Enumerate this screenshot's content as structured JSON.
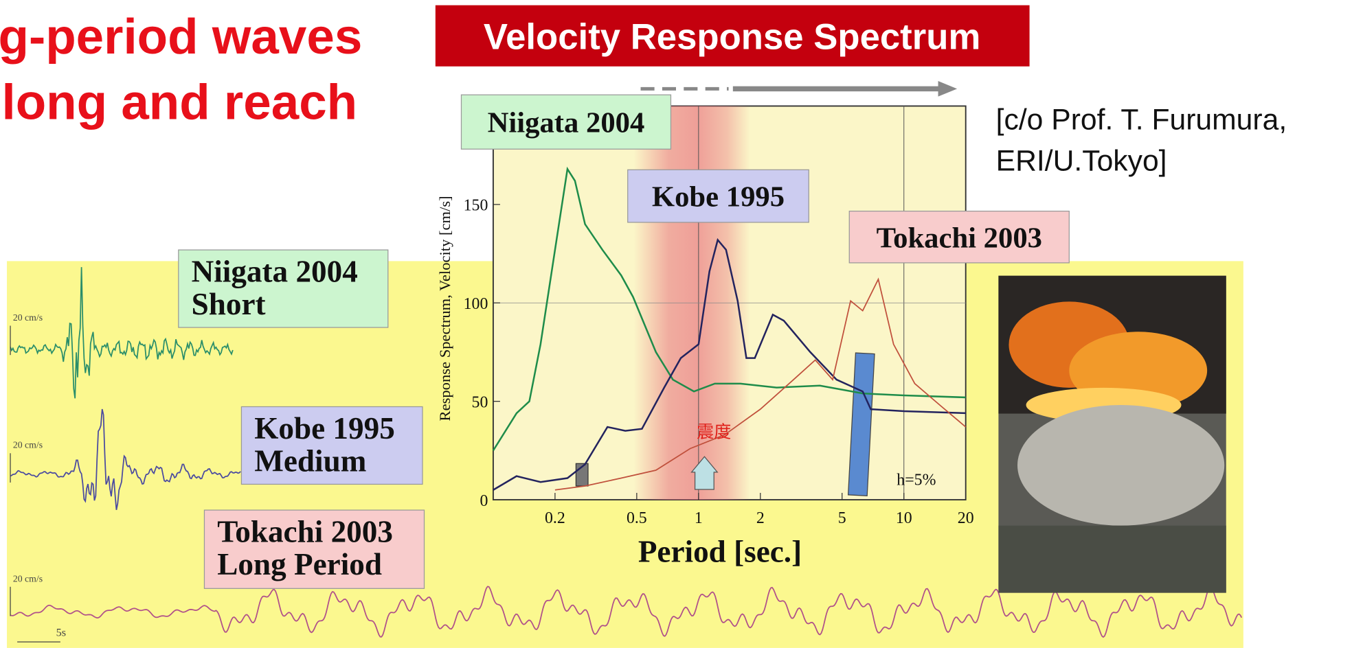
{
  "slide": {
    "heading_lines": [
      "g-period waves",
      "long and reach"
    ],
    "banner": "Velocity Response Spectrum",
    "credit_lines": [
      "[c/o Prof. T. Furumura,",
      "ERI/U.Tokyo]"
    ],
    "seismograms": [
      {
        "label_lines": [
          "Niigata 2004",
          "Short"
        ],
        "scale": "20 cm/s"
      },
      {
        "label_lines": [
          "Kobe 1995",
          "Medium"
        ],
        "scale": "20 cm/s"
      },
      {
        "label_lines": [
          "Tokachi 2003",
          "Long Period"
        ],
        "scale": "20 cm/s"
      }
    ],
    "time_scale": "5s"
  },
  "chart_data": {
    "type": "line",
    "x_label": "Period [sec.]",
    "y_label": "Response Spectrum, Velocity [cm/s]",
    "annotations": [
      "h=5%",
      "震度"
    ],
    "xlog": true,
    "xlim": [
      0.1,
      20
    ],
    "xticks": [
      0.2,
      0.5,
      1,
      2,
      5,
      10,
      20
    ],
    "ylim": [
      0,
      200
    ],
    "yticks": [
      0,
      50,
      100,
      150
    ],
    "xgrid": [
      1,
      10
    ],
    "ygrid": [
      100
    ],
    "series": [
      {
        "name": "Niigata 2004",
        "color": "#1e8c4a",
        "x": [
          0.1,
          0.13,
          0.15,
          0.17,
          0.2,
          0.23,
          0.25,
          0.28,
          0.34,
          0.42,
          0.48,
          0.62,
          0.75,
          0.95,
          1.2,
          1.6,
          2.4,
          3.9,
          6.3,
          10,
          20
        ],
        "values": [
          25,
          44,
          50,
          79,
          127,
          168,
          162,
          140,
          127,
          114,
          103,
          75,
          61,
          55,
          59,
          59,
          57,
          58,
          54,
          53,
          52
        ]
      },
      {
        "name": "Kobe 1995",
        "color": "#23235e",
        "x": [
          0.1,
          0.13,
          0.17,
          0.23,
          0.28,
          0.36,
          0.44,
          0.53,
          0.68,
          0.82,
          1.0,
          1.13,
          1.24,
          1.36,
          1.55,
          1.71,
          1.88,
          2.3,
          2.6,
          3.5,
          4.7,
          6.3,
          6.9,
          10,
          20
        ],
        "values": [
          5,
          12,
          9,
          11,
          18,
          37,
          35,
          36,
          57,
          72,
          79,
          116,
          132,
          127,
          101,
          72,
          72,
          94,
          91,
          75,
          61,
          55,
          46,
          45,
          44
        ]
      },
      {
        "name": "Tokachi 2003",
        "color": "#c0503c",
        "x": [
          0.2,
          0.28,
          0.42,
          0.62,
          0.91,
          1.34,
          2.0,
          2.9,
          3.7,
          4.5,
          5.5,
          6.3,
          7.5,
          8.9,
          11.3,
          15,
          20
        ],
        "values": [
          5,
          7,
          11,
          15,
          26,
          33,
          46,
          61,
          71,
          61,
          101,
          96,
          112,
          79,
          59,
          48,
          37
        ]
      }
    ]
  }
}
